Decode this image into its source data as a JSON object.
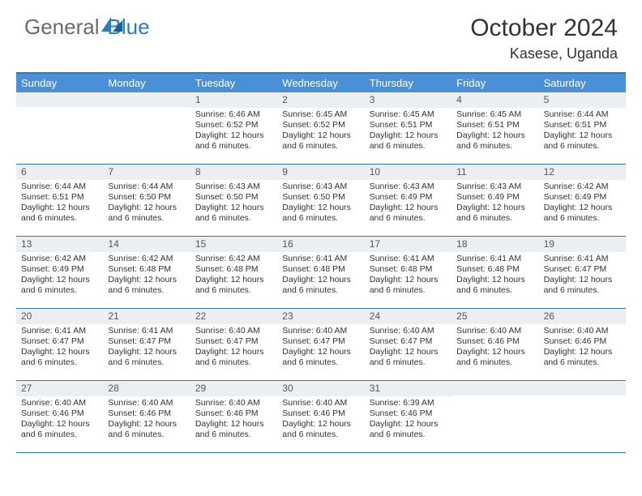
{
  "brand": {
    "word1": "General",
    "word2": "Blue"
  },
  "title": "October 2024",
  "location": "Kasese, Uganda",
  "colors": {
    "header_bar": "#4a90d9",
    "accent_line": "#2b7bbf",
    "daynum_bg": "#eceff1",
    "text": "#333333",
    "logo_gray": "#6b6b6b"
  },
  "dows": [
    "Sunday",
    "Monday",
    "Tuesday",
    "Wednesday",
    "Thursday",
    "Friday",
    "Saturday"
  ],
  "weeks": [
    [
      {},
      {},
      {
        "d": "1",
        "sr": "6:46 AM",
        "ss": "6:52 PM",
        "dl": "12 hours and 6 minutes."
      },
      {
        "d": "2",
        "sr": "6:45 AM",
        "ss": "6:52 PM",
        "dl": "12 hours and 6 minutes."
      },
      {
        "d": "3",
        "sr": "6:45 AM",
        "ss": "6:51 PM",
        "dl": "12 hours and 6 minutes."
      },
      {
        "d": "4",
        "sr": "6:45 AM",
        "ss": "6:51 PM",
        "dl": "12 hours and 6 minutes."
      },
      {
        "d": "5",
        "sr": "6:44 AM",
        "ss": "6:51 PM",
        "dl": "12 hours and 6 minutes."
      }
    ],
    [
      {
        "d": "6",
        "sr": "6:44 AM",
        "ss": "6:51 PM",
        "dl": "12 hours and 6 minutes."
      },
      {
        "d": "7",
        "sr": "6:44 AM",
        "ss": "6:50 PM",
        "dl": "12 hours and 6 minutes."
      },
      {
        "d": "8",
        "sr": "6:43 AM",
        "ss": "6:50 PM",
        "dl": "12 hours and 6 minutes."
      },
      {
        "d": "9",
        "sr": "6:43 AM",
        "ss": "6:50 PM",
        "dl": "12 hours and 6 minutes."
      },
      {
        "d": "10",
        "sr": "6:43 AM",
        "ss": "6:49 PM",
        "dl": "12 hours and 6 minutes."
      },
      {
        "d": "11",
        "sr": "6:43 AM",
        "ss": "6:49 PM",
        "dl": "12 hours and 6 minutes."
      },
      {
        "d": "12",
        "sr": "6:42 AM",
        "ss": "6:49 PM",
        "dl": "12 hours and 6 minutes."
      }
    ],
    [
      {
        "d": "13",
        "sr": "6:42 AM",
        "ss": "6:49 PM",
        "dl": "12 hours and 6 minutes."
      },
      {
        "d": "14",
        "sr": "6:42 AM",
        "ss": "6:48 PM",
        "dl": "12 hours and 6 minutes."
      },
      {
        "d": "15",
        "sr": "6:42 AM",
        "ss": "6:48 PM",
        "dl": "12 hours and 6 minutes."
      },
      {
        "d": "16",
        "sr": "6:41 AM",
        "ss": "6:48 PM",
        "dl": "12 hours and 6 minutes."
      },
      {
        "d": "17",
        "sr": "6:41 AM",
        "ss": "6:48 PM",
        "dl": "12 hours and 6 minutes."
      },
      {
        "d": "18",
        "sr": "6:41 AM",
        "ss": "6:48 PM",
        "dl": "12 hours and 6 minutes."
      },
      {
        "d": "19",
        "sr": "6:41 AM",
        "ss": "6:47 PM",
        "dl": "12 hours and 6 minutes."
      }
    ],
    [
      {
        "d": "20",
        "sr": "6:41 AM",
        "ss": "6:47 PM",
        "dl": "12 hours and 6 minutes."
      },
      {
        "d": "21",
        "sr": "6:41 AM",
        "ss": "6:47 PM",
        "dl": "12 hours and 6 minutes."
      },
      {
        "d": "22",
        "sr": "6:40 AM",
        "ss": "6:47 PM",
        "dl": "12 hours and 6 minutes."
      },
      {
        "d": "23",
        "sr": "6:40 AM",
        "ss": "6:47 PM",
        "dl": "12 hours and 6 minutes."
      },
      {
        "d": "24",
        "sr": "6:40 AM",
        "ss": "6:47 PM",
        "dl": "12 hours and 6 minutes."
      },
      {
        "d": "25",
        "sr": "6:40 AM",
        "ss": "6:46 PM",
        "dl": "12 hours and 6 minutes."
      },
      {
        "d": "26",
        "sr": "6:40 AM",
        "ss": "6:46 PM",
        "dl": "12 hours and 6 minutes."
      }
    ],
    [
      {
        "d": "27",
        "sr": "6:40 AM",
        "ss": "6:46 PM",
        "dl": "12 hours and 6 minutes."
      },
      {
        "d": "28",
        "sr": "6:40 AM",
        "ss": "6:46 PM",
        "dl": "12 hours and 6 minutes."
      },
      {
        "d": "29",
        "sr": "6:40 AM",
        "ss": "6:46 PM",
        "dl": "12 hours and 6 minutes."
      },
      {
        "d": "30",
        "sr": "6:40 AM",
        "ss": "6:46 PM",
        "dl": "12 hours and 6 minutes."
      },
      {
        "d": "31",
        "sr": "6:39 AM",
        "ss": "6:46 PM",
        "dl": "12 hours and 6 minutes."
      },
      {},
      {}
    ]
  ],
  "labels": {
    "sunrise": "Sunrise: ",
    "sunset": "Sunset: ",
    "daylight": "Daylight: "
  }
}
